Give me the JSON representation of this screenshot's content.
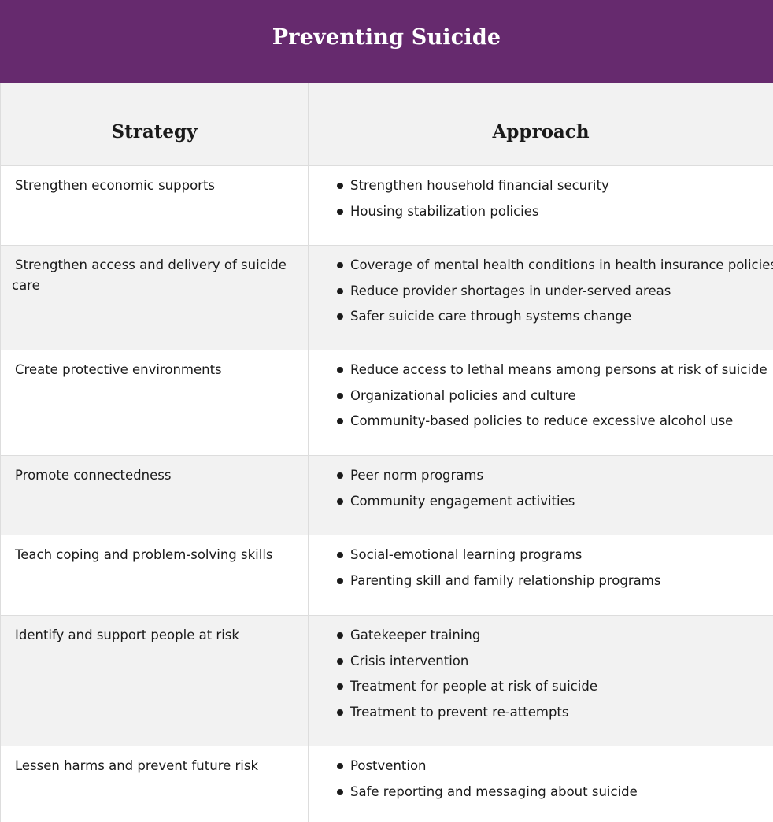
{
  "title": "Preventing Suicide",
  "table": {
    "headers": [
      "Strategy",
      "Approach"
    ],
    "rows": [
      {
        "strategy": "Strengthen economic supports",
        "approaches": [
          "Strengthen household financial security",
          "Housing stabilization policies"
        ]
      },
      {
        "strategy": "Strengthen access and delivery of suicide care",
        "approaches": [
          "Coverage of mental health conditions in health insurance policies",
          "Reduce provider shortages in under-served areas",
          "Safer suicide care through systems change"
        ]
      },
      {
        "strategy": "Create protective environments",
        "approaches": [
          "Reduce access to lethal means among persons at risk of suicide",
          "Organizational policies and culture",
          "Community-based policies to reduce excessive alcohol use"
        ]
      },
      {
        "strategy": "Promote connectedness",
        "approaches": [
          "Peer norm programs",
          "Community engagement activities"
        ]
      },
      {
        "strategy": "Teach coping and problem-solving skills",
        "approaches": [
          "Social-emotional learning programs",
          "Parenting skill and family relationship programs"
        ]
      },
      {
        "strategy": "Identify and support people at risk",
        "approaches": [
          "Gatekeeper training",
          "Crisis intervention",
          "Treatment for people at risk of suicide",
          "Treatment to prevent re-attempts"
        ]
      },
      {
        "strategy": "Lessen harms and prevent future risk",
        "approaches": [
          "Postvention",
          "Safe reporting and messaging about suicide"
        ]
      }
    ]
  },
  "colors": {
    "title_bar": "#662a6e",
    "header_bg": "#f2f2f2",
    "stripe_bg": "#f2f2f2",
    "border": "#dddddd",
    "text": "#1a1a1a"
  },
  "icons": {
    "list_bullet": "bullet-icon"
  }
}
